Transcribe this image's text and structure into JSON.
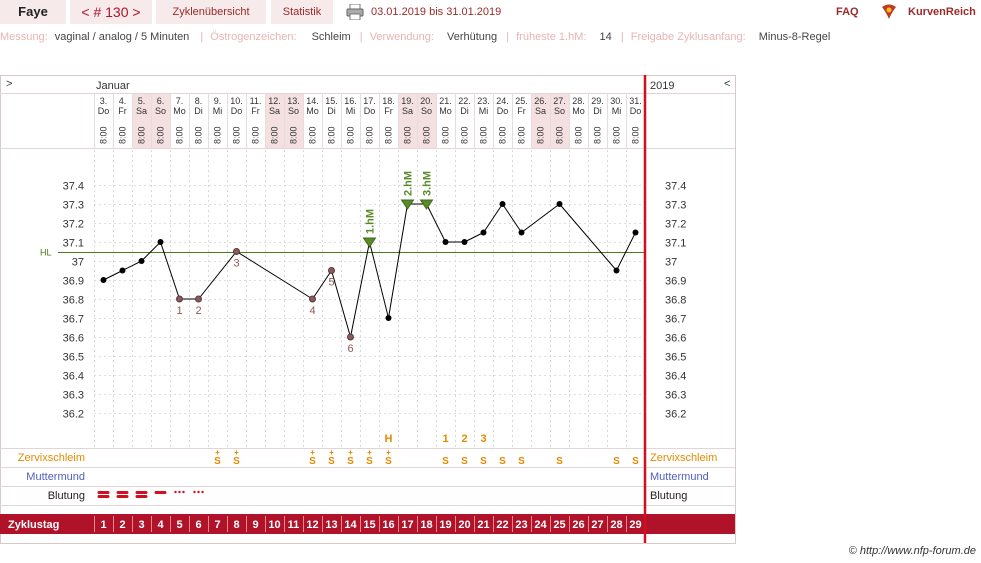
{
  "header": {
    "name": "Faye",
    "cycle_nav": "< # 130 >",
    "tab_overview": "Zyklenübersicht",
    "tab_stats": "Statistik",
    "date_range": "03.01.2019 bis 31.01.2019",
    "faq": "FAQ",
    "brand": "KurvenReich"
  },
  "meta": {
    "measurement_label": "Messung:",
    "measurement_value": "vaginal / analog / 5 Minuten",
    "estrogen_label": "Östrogenzeichen:",
    "estrogen_value": "Schleim",
    "use_label": "Verwendung:",
    "use_value": "Verhütung",
    "earliest_label": "früheste 1.hM:",
    "earliest_value": "14",
    "release_label": "Freigabe Zyklusanfang:",
    "release_value": "Minus-8-Regel"
  },
  "footer": {
    "copyright": "© http://www.nfp-forum.de"
  },
  "colors": {
    "brand": "#9b2a2a",
    "accent_bar": "#b0122a",
    "curve": "#000000",
    "hl_line": "#4a7a1e",
    "mucus": "#e68a00",
    "orifice": "#5060c0",
    "weekend_bg": "#f4e0e0"
  },
  "chart_data": {
    "type": "line",
    "month_label": "Januar",
    "year_label": "2019",
    "nav_left": ">",
    "nav_right": "<",
    "time": "8:00",
    "days": [
      {
        "date": "3.",
        "wd": "Do"
      },
      {
        "date": "4.",
        "wd": "Fr"
      },
      {
        "date": "5.",
        "wd": "Sa"
      },
      {
        "date": "6.",
        "wd": "So"
      },
      {
        "date": "7.",
        "wd": "Mo"
      },
      {
        "date": "8.",
        "wd": "Di"
      },
      {
        "date": "9.",
        "wd": "Mi"
      },
      {
        "date": "10.",
        "wd": "Do"
      },
      {
        "date": "11.",
        "wd": "Fr"
      },
      {
        "date": "12.",
        "wd": "Sa"
      },
      {
        "date": "13.",
        "wd": "So"
      },
      {
        "date": "14.",
        "wd": "Mo"
      },
      {
        "date": "15.",
        "wd": "Di"
      },
      {
        "date": "16.",
        "wd": "Mi"
      },
      {
        "date": "17.",
        "wd": "Do"
      },
      {
        "date": "18.",
        "wd": "Fr"
      },
      {
        "date": "19.",
        "wd": "Sa"
      },
      {
        "date": "20.",
        "wd": "So"
      },
      {
        "date": "21.",
        "wd": "Mo"
      },
      {
        "date": "22.",
        "wd": "Di"
      },
      {
        "date": "23.",
        "wd": "Mi"
      },
      {
        "date": "24.",
        "wd": "Do"
      },
      {
        "date": "25.",
        "wd": "Fr"
      },
      {
        "date": "26.",
        "wd": "Sa"
      },
      {
        "date": "27.",
        "wd": "So"
      },
      {
        "date": "28.",
        "wd": "Mo"
      },
      {
        "date": "29.",
        "wd": "Di"
      },
      {
        "date": "30.",
        "wd": "Mi"
      },
      {
        "date": "31.",
        "wd": "Do"
      }
    ],
    "cycle_days": [
      1,
      2,
      3,
      4,
      5,
      6,
      7,
      8,
      9,
      10,
      11,
      12,
      13,
      14,
      15,
      16,
      17,
      18,
      19,
      20,
      21,
      22,
      23,
      24,
      25,
      26,
      27,
      28,
      29
    ],
    "cycle_day_label": "Zyklustag",
    "temperatures": [
      36.9,
      36.95,
      37.0,
      37.1,
      36.8,
      36.8,
      null,
      37.05,
      null,
      null,
      null,
      36.8,
      36.95,
      36.6,
      37.1,
      36.7,
      37.3,
      37.3,
      37.1,
      37.1,
      37.15,
      37.3,
      37.15,
      null,
      37.3,
      null,
      null,
      36.95,
      37.15
    ],
    "y_ticks": [
      "37.4",
      "37.3",
      "37.2",
      "37.1",
      "37",
      "36.9",
      "36.8",
      "36.7",
      "36.6",
      "36.5",
      "36.4",
      "36.3",
      "36.2"
    ],
    "ylim": [
      36.1,
      37.5
    ],
    "hl_value": 37.05,
    "hl_label": "HL",
    "low_markers": [
      {
        "day": 5,
        "label": "1"
      },
      {
        "day": 6,
        "label": "2"
      },
      {
        "day": 8,
        "label": "3"
      },
      {
        "day": 12,
        "label": "4"
      },
      {
        "day": 13,
        "label": "5"
      },
      {
        "day": 14,
        "label": "6"
      }
    ],
    "high_markers": [
      {
        "day": 15,
        "label": "1.hM"
      },
      {
        "day": 17,
        "label": "2.hM"
      },
      {
        "day": 18,
        "label": "3.hM"
      }
    ],
    "peak_marker": {
      "day": 16,
      "label": "H"
    },
    "post_peak": [
      {
        "day": 19,
        "label": "1"
      },
      {
        "day": 20,
        "label": "2"
      },
      {
        "day": 21,
        "label": "3"
      }
    ],
    "rows": {
      "mucus_label": "Zervixschleim",
      "orifice_label": "Muttermund",
      "bleeding_label": "Blutung",
      "mucus_marks": [
        {
          "day": 7,
          "mark": "S+"
        },
        {
          "day": 8,
          "mark": "S+"
        },
        {
          "day": 12,
          "mark": "S+"
        },
        {
          "day": 13,
          "mark": "S+"
        },
        {
          "day": 14,
          "mark": "S+"
        },
        {
          "day": 15,
          "mark": "S+"
        },
        {
          "day": 16,
          "mark": "S+"
        },
        {
          "day": 19,
          "mark": "S"
        },
        {
          "day": 20,
          "mark": "S"
        },
        {
          "day": 21,
          "mark": "S"
        },
        {
          "day": 22,
          "mark": "S"
        },
        {
          "day": 23,
          "mark": "S"
        },
        {
          "day": 25,
          "mark": "S"
        },
        {
          "day": 28,
          "mark": "S"
        },
        {
          "day": 29,
          "mark": "S"
        }
      ],
      "bleeding": [
        {
          "day": 1,
          "level": "strong"
        },
        {
          "day": 2,
          "level": "strong"
        },
        {
          "day": 3,
          "level": "strong"
        },
        {
          "day": 4,
          "level": "medium"
        },
        {
          "day": 5,
          "level": "spotting"
        },
        {
          "day": 6,
          "level": "spotting"
        }
      ]
    }
  }
}
